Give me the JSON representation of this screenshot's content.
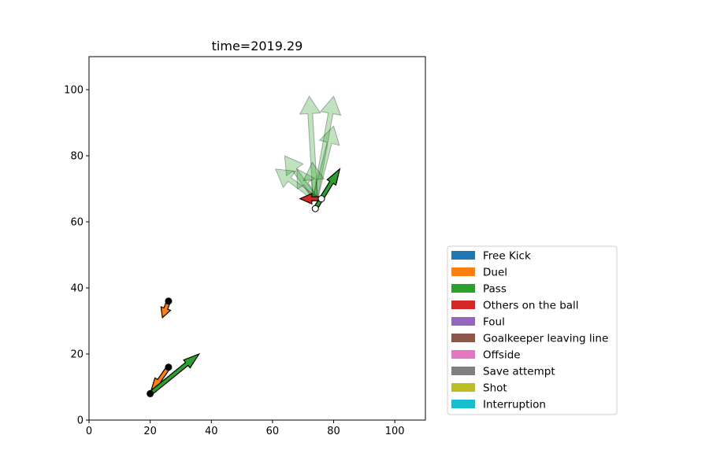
{
  "chart_data": {
    "type": "scatter",
    "title": "time=2019.29",
    "xlabel": "",
    "ylabel": "",
    "xlim": [
      0,
      110
    ],
    "ylim": [
      0,
      110
    ],
    "x_ticks": [
      0,
      20,
      40,
      60,
      80,
      100
    ],
    "y_ticks": [
      0,
      20,
      40,
      60,
      80,
      100
    ],
    "grid": false,
    "legend_position": "lower-right outside",
    "legend": [
      {
        "name": "Free Kick",
        "color": "#1f77b4"
      },
      {
        "name": "Duel",
        "color": "#ff7f0e"
      },
      {
        "name": "Pass",
        "color": "#2ca02c"
      },
      {
        "name": "Others on the ball",
        "color": "#d62728"
      },
      {
        "name": "Foul",
        "color": "#9467bd"
      },
      {
        "name": "Goalkeeper leaving line",
        "color": "#8c564b"
      },
      {
        "name": "Offside",
        "color": "#e377c2"
      },
      {
        "name": "Save attempt",
        "color": "#7f7f7f"
      },
      {
        "name": "Shot",
        "color": "#bcbd22"
      },
      {
        "name": "Interruption",
        "color": "#17becf"
      }
    ],
    "team_a_events": [
      {
        "event": "Duel",
        "start": [
          26,
          36
        ],
        "end": [
          24,
          31
        ]
      },
      {
        "event": "Duel",
        "start": [
          26,
          16
        ],
        "end": [
          20,
          8
        ]
      },
      {
        "event": "Pass",
        "start": [
          20,
          8
        ],
        "end": [
          36,
          20
        ]
      }
    ],
    "team_b_events": [
      {
        "event": "Pass",
        "start": [
          74,
          64
        ],
        "end": [
          82,
          76
        ]
      },
      {
        "event": "Others on the ball",
        "start": [
          76,
          67
        ],
        "end": [
          69,
          67
        ]
      }
    ],
    "faded_events": [
      {
        "event": "Pass",
        "start": [
          74,
          67
        ],
        "end": [
          80,
          98
        ]
      },
      {
        "event": "Pass",
        "start": [
          74,
          67
        ],
        "end": [
          72,
          98
        ]
      },
      {
        "event": "Pass",
        "start": [
          74,
          67
        ],
        "end": [
          64,
          80
        ]
      },
      {
        "event": "Pass",
        "start": [
          74,
          67
        ],
        "end": [
          80,
          89
        ]
      },
      {
        "event": "Pass",
        "start": [
          74,
          67
        ],
        "end": [
          68,
          76
        ]
      },
      {
        "event": "Pass",
        "start": [
          74,
          67
        ],
        "end": [
          73,
          78
        ]
      },
      {
        "event": "Pass",
        "start": [
          74,
          67
        ],
        "end": [
          61,
          76
        ]
      }
    ]
  }
}
